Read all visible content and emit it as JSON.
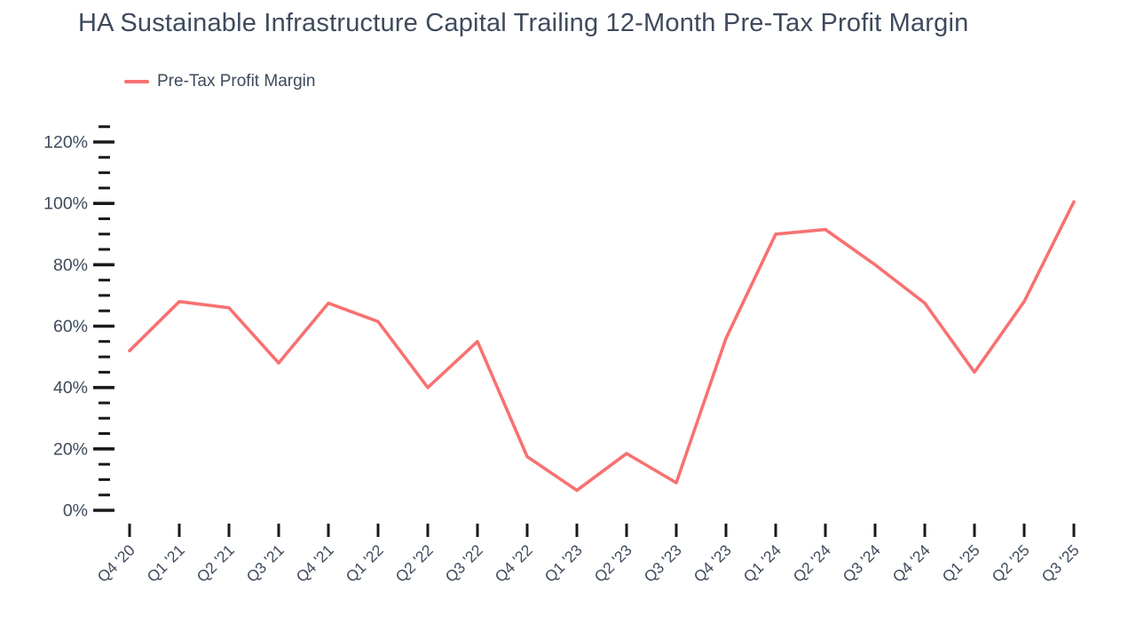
{
  "title": "HA Sustainable Infrastructure Capital Trailing 12-Month Pre-Tax Profit Margin",
  "legend": {
    "label": "Pre-Tax Profit Margin",
    "swatch_color": "#F87171"
  },
  "colors": {
    "accent": "#F87171",
    "text": "#3E4A5C",
    "tick": "#17191C",
    "background": "#FFFFFF"
  },
  "chart_data": {
    "type": "line",
    "title": "HA Sustainable Infrastructure Capital Trailing 12-Month Pre-Tax Profit Margin",
    "categories": [
      "Q4 '20",
      "Q1 '21",
      "Q2 '21",
      "Q3 '21",
      "Q4 '21",
      "Q1 '22",
      "Q2 '22",
      "Q3 '22",
      "Q4 '22",
      "Q1 '23",
      "Q2 '23",
      "Q3 '23",
      "Q4 '23",
      "Q1 '24",
      "Q2 '24",
      "Q3 '24",
      "Q4 '24",
      "Q1 '25",
      "Q2 '25",
      "Q3 '25"
    ],
    "series": [
      {
        "name": "Pre-Tax Profit Margin",
        "color": "#F87171",
        "values": [
          52,
          68,
          66,
          48,
          67.5,
          61.5,
          40,
          55,
          17.5,
          6.5,
          18.5,
          9,
          56,
          90,
          91.5,
          80,
          67.5,
          45,
          68,
          100.5
        ]
      }
    ],
    "xlabel": "",
    "ylabel": "",
    "y_unit": "%",
    "ylim": [
      0,
      125
    ],
    "y_major_ticks": [
      0,
      20,
      40,
      60,
      80,
      100,
      120
    ],
    "y_minor_step": 5,
    "y_tick_label_format": "{v}%",
    "grid": false,
    "x_label_rotation": -45,
    "legend_position": "top-left"
  }
}
